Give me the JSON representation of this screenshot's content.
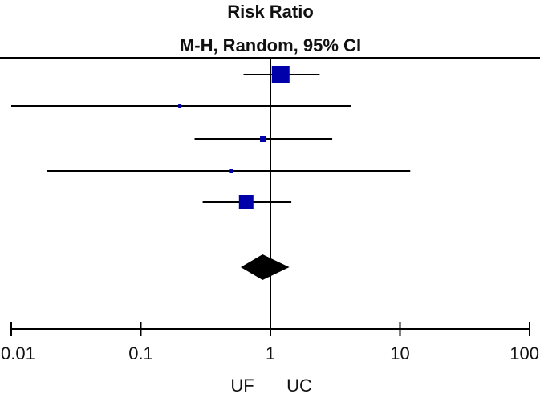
{
  "chart_data": {
    "type": "scatter",
    "header": [
      "Risk Ratio",
      "M-H, Random, 95% CI"
    ],
    "x_scale": "log",
    "xlim": [
      0.01,
      100
    ],
    "ticks": [
      {
        "value": 0.01,
        "label": "0.01"
      },
      {
        "value": 0.1,
        "label": "0.1"
      },
      {
        "value": 1,
        "label": "1"
      },
      {
        "value": 10,
        "label": "10"
      },
      {
        "value": 100,
        "label": "100"
      }
    ],
    "reference_line": 1,
    "favours": {
      "left": "UF",
      "right": "UC"
    },
    "studies": [
      {
        "rr": 1.2,
        "lower": 0.62,
        "upper": 2.4,
        "weight": "large"
      },
      {
        "rr": 0.2,
        "lower": 0.01,
        "upper": 4.2,
        "weight": "tiny"
      },
      {
        "rr": 0.88,
        "lower": 0.26,
        "upper": 3.0,
        "weight": "small"
      },
      {
        "rr": 0.5,
        "lower": 0.019,
        "upper": 12,
        "weight": "tiny"
      },
      {
        "rr": 0.65,
        "lower": 0.3,
        "upper": 1.45,
        "weight": "medium"
      }
    ],
    "pooled": {
      "rr": 0.87,
      "lower": 0.59,
      "upper": 1.4
    },
    "colors": {
      "marker": "#0000aa",
      "line": "#000000",
      "diamond": "#000000"
    }
  }
}
